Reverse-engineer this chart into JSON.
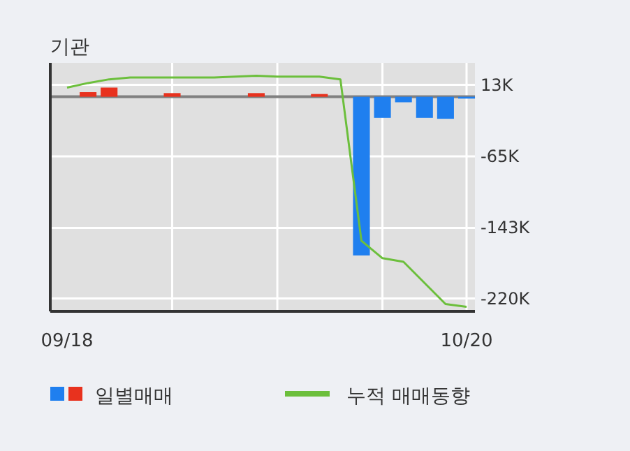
{
  "chart_data": {
    "type": "bar",
    "title": "기관",
    "categories": [
      "09/18",
      null,
      null,
      null,
      null,
      null,
      null,
      null,
      null,
      null,
      null,
      null,
      null,
      null,
      null,
      null,
      null,
      null,
      null,
      "10/20"
    ],
    "series": [
      {
        "name": "일별매매",
        "colors": [
          "#e8321e",
          "#e8321e",
          "#e8321e",
          "#e8321e",
          "#e8321e",
          "#e8321e",
          "#e8321e",
          "#e8321e",
          "#e8321e",
          "#e8321e",
          "#e8321e",
          "#e8321e",
          "#e8321e",
          "#e8321e",
          "#1f7fef",
          "#1f7fef",
          "#1f7fef",
          "#1f7fef",
          "#1f7fef",
          "#1f7fef"
        ],
        "values": [
          null,
          5,
          10,
          null,
          null,
          4,
          null,
          null,
          null,
          4,
          null,
          null,
          3,
          null,
          -173,
          -23,
          -6,
          -23,
          -24,
          -2
        ]
      },
      {
        "name": "누적 매매동향",
        "type": "line",
        "color": "#6cbf3c",
        "values": [
          10,
          15,
          19,
          21,
          21,
          21,
          21,
          21,
          22,
          23,
          22,
          22,
          22,
          19,
          -157,
          -176,
          -180,
          -203,
          -226,
          -229
        ]
      }
    ],
    "ylim": [
      -234,
      37
    ],
    "yticks": [
      {
        "value": 13,
        "label": "13K"
      },
      {
        "value": -65,
        "label": "-65K"
      },
      {
        "value": -143,
        "label": "-143K"
      },
      {
        "value": -220,
        "label": "-220K"
      }
    ],
    "ref_lines": [
      {
        "axis": "y",
        "value": 0,
        "color": "#808080"
      }
    ],
    "grid": true,
    "legend": "bottom"
  }
}
